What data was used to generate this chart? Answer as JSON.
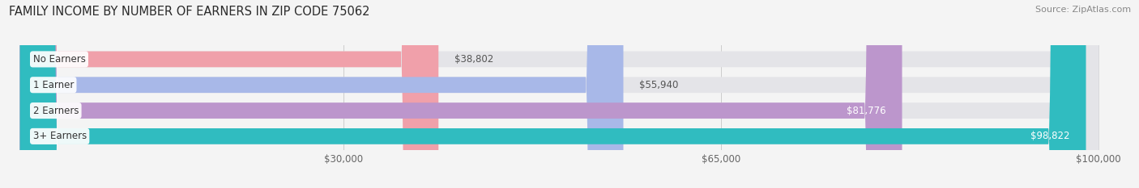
{
  "title": "FAMILY INCOME BY NUMBER OF EARNERS IN ZIP CODE 75062",
  "source": "Source: ZipAtlas.com",
  "categories": [
    "No Earners",
    "1 Earner",
    "2 Earners",
    "3+ Earners"
  ],
  "values": [
    38802,
    55940,
    81776,
    98822
  ],
  "bar_colors": [
    "#f0a0aa",
    "#a8b8e8",
    "#bc96cc",
    "#30bcc0"
  ],
  "label_colors": [
    "#555555",
    "#555555",
    "#ffffff",
    "#ffffff"
  ],
  "value_label_inside": [
    false,
    false,
    true,
    true
  ],
  "xmax": 100000,
  "xticks": [
    30000,
    65000,
    100000
  ],
  "xtick_labels": [
    "$30,000",
    "$65,000",
    "$100,000"
  ],
  "background_color": "#f4f4f4",
  "bar_bg_color": "#e4e4e8",
  "title_fontsize": 10.5,
  "source_fontsize": 8,
  "bar_label_fontsize": 8.5,
  "category_fontsize": 8.5,
  "tick_fontsize": 8.5,
  "bar_height": 0.62,
  "bar_gap": 1.0
}
